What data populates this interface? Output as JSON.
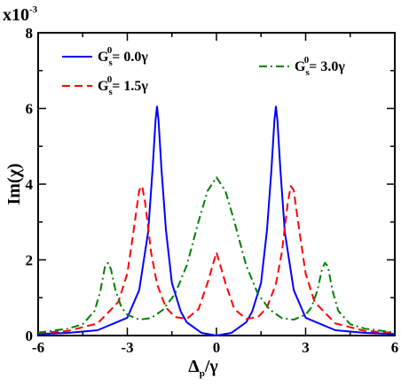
{
  "chart_data": {
    "type": "line",
    "multiplier_label": "x10",
    "multiplier_exponent": "-3",
    "ylabel": "Im(χ)",
    "xlabel_main": "Δ",
    "xlabel_sub": "p",
    "xlabel_tail": "/γ",
    "xlim": [
      -6,
      6
    ],
    "ylim": [
      0,
      8
    ],
    "x_ticks": [
      -6,
      -3,
      0,
      3,
      6
    ],
    "y_ticks": [
      0,
      2,
      4,
      6,
      8
    ],
    "series": [
      {
        "name_main": "G",
        "name_sup": "0",
        "name_sub": "s",
        "name_tail": "= 0.0γ",
        "color": "#0000ff",
        "style": "solid",
        "x": [
          -6,
          -5,
          -4,
          -3,
          -2.6,
          -2.3,
          -2.15,
          -2.05,
          -2.0,
          -1.95,
          -1.85,
          -1.7,
          -1.5,
          -1.2,
          -1,
          -0.5,
          0,
          0.5,
          1,
          1.2,
          1.5,
          1.7,
          1.85,
          1.95,
          2.0,
          2.05,
          2.15,
          2.3,
          2.6,
          3,
          4,
          5,
          6
        ],
        "values": [
          0.04,
          0.07,
          0.14,
          0.47,
          1.2,
          2.73,
          4.39,
          5.69,
          6.05,
          5.69,
          4.39,
          2.79,
          1.39,
          0.63,
          0.35,
          0.07,
          0.0,
          0.07,
          0.35,
          0.63,
          1.39,
          2.79,
          4.39,
          5.69,
          6.05,
          5.69,
          4.39,
          2.73,
          1.2,
          0.47,
          0.14,
          0.07,
          0.04
        ]
      },
      {
        "name_main": "G",
        "name_sup": "0",
        "name_sub": "s",
        "name_tail": "= 1.5γ",
        "color": "#ff0000",
        "style": "dashed",
        "x": [
          -6,
          -5,
          -4,
          -3.3,
          -3.0,
          -2.8,
          -2.6,
          -2.5,
          -2.4,
          -2.2,
          -2.0,
          -1.7,
          -1.4,
          -1.0,
          -0.6,
          -0.3,
          0,
          0.3,
          0.6,
          1.0,
          1.4,
          1.7,
          2.0,
          2.2,
          2.4,
          2.5,
          2.6,
          2.8,
          3.0,
          3.3,
          4,
          5,
          6
        ],
        "values": [
          0.07,
          0.12,
          0.32,
          0.89,
          1.64,
          2.7,
          3.84,
          3.95,
          3.51,
          2.2,
          1.36,
          0.74,
          0.49,
          0.44,
          0.7,
          1.39,
          2.2,
          1.39,
          0.7,
          0.44,
          0.49,
          0.74,
          1.36,
          2.2,
          3.51,
          3.95,
          3.84,
          2.7,
          1.64,
          0.89,
          0.32,
          0.12,
          0.07
        ]
      },
      {
        "name_main": "G",
        "name_sup": "0",
        "name_sub": "s",
        "name_tail": "= 3.0γ",
        "color": "#008000",
        "style": "dashdot",
        "x": [
          -6,
          -5,
          -4.5,
          -4.1,
          -3.9,
          -3.75,
          -3.65,
          -3.55,
          -3.4,
          -3.2,
          -3.0,
          -2.6,
          -2.2,
          -1.8,
          -1.4,
          -1.0,
          -0.6,
          -0.3,
          0,
          0.3,
          0.6,
          1.0,
          1.4,
          1.8,
          2.2,
          2.6,
          3.0,
          3.2,
          3.4,
          3.55,
          3.65,
          3.75,
          3.9,
          4.1,
          4.5,
          5,
          6
        ],
        "values": [
          0.08,
          0.18,
          0.3,
          0.65,
          1.2,
          1.83,
          1.92,
          1.75,
          1.2,
          0.75,
          0.55,
          0.42,
          0.46,
          0.68,
          1.09,
          1.85,
          3.02,
          3.82,
          4.18,
          3.82,
          3.02,
          1.85,
          1.09,
          0.68,
          0.46,
          0.42,
          0.55,
          0.75,
          1.2,
          1.75,
          1.92,
          1.83,
          1.2,
          0.65,
          0.3,
          0.18,
          0.08
        ]
      }
    ],
    "grid": false,
    "legend_position": "top-left and top-right"
  }
}
